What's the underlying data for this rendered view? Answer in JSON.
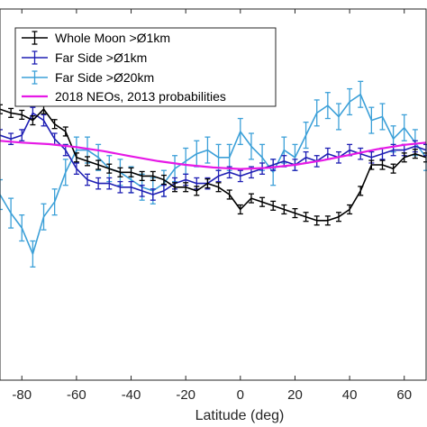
{
  "chart_data": {
    "type": "line",
    "title": "",
    "xlabel": "Latitude (deg)",
    "ylabel": "",
    "xlim": [
      -88,
      68
    ],
    "ylim": [
      0.0,
      1.0
    ],
    "x_ticks": [
      -80,
      -60,
      -40,
      -20,
      0,
      20,
      40,
      60
    ],
    "x_tick_labels": [
      "-80",
      "-60",
      "-40",
      "-20",
      "0",
      "20",
      "40",
      "60"
    ],
    "grid": false,
    "legend_position": "top-left",
    "legend": [
      {
        "label": "Whole Moon >Ø1km",
        "color": "#000000"
      },
      {
        "label": "Far Side >Ø1km",
        "color": "#1f1fb4"
      },
      {
        "label": "Far Side >Ø20km",
        "color": "#3ca0d8"
      },
      {
        "label": "2018 NEOs, 2013 probabilities",
        "color": "#e619e6"
      }
    ],
    "series": [
      {
        "name": "Whole Moon >Ø1km",
        "color": "#000000",
        "error_bars": true,
        "x": [
          -88,
          -84,
          -80,
          -76,
          -72,
          -68,
          -64,
          -60,
          -56,
          -52,
          -48,
          -44,
          -40,
          -36,
          -32,
          -28,
          -24,
          -20,
          -16,
          -12,
          -8,
          -4,
          0,
          4,
          8,
          12,
          16,
          20,
          24,
          28,
          32,
          36,
          40,
          44,
          48,
          52,
          56,
          60,
          64,
          68
        ],
        "y": [
          0.73,
          0.72,
          0.715,
          0.7,
          0.73,
          0.69,
          0.67,
          0.6,
          0.59,
          0.58,
          0.57,
          0.56,
          0.56,
          0.55,
          0.55,
          0.54,
          0.52,
          0.52,
          0.51,
          0.53,
          0.52,
          0.5,
          0.46,
          0.49,
          0.48,
          0.47,
          0.46,
          0.45,
          0.44,
          0.43,
          0.43,
          0.44,
          0.46,
          0.51,
          0.58,
          0.58,
          0.57,
          0.6,
          0.61,
          0.6
        ],
        "err": [
          0.012,
          0.012,
          0.012,
          0.012,
          0.012,
          0.012,
          0.012,
          0.012,
          0.012,
          0.012,
          0.012,
          0.012,
          0.012,
          0.012,
          0.012,
          0.012,
          0.012,
          0.012,
          0.012,
          0.012,
          0.012,
          0.012,
          0.012,
          0.012,
          0.012,
          0.012,
          0.012,
          0.012,
          0.012,
          0.012,
          0.012,
          0.012,
          0.012,
          0.012,
          0.012,
          0.012,
          0.012,
          0.012,
          0.012,
          0.012
        ]
      },
      {
        "name": "Far Side >Ø1km",
        "color": "#1f1fb4",
        "error_bars": true,
        "x": [
          -88,
          -84,
          -80,
          -76,
          -72,
          -68,
          -64,
          -60,
          -56,
          -52,
          -48,
          -44,
          -40,
          -36,
          -32,
          -28,
          -24,
          -20,
          -16,
          -12,
          -8,
          -4,
          0,
          4,
          8,
          12,
          16,
          20,
          24,
          28,
          32,
          36,
          40,
          44,
          48,
          52,
          56,
          60,
          64,
          68
        ],
        "y": [
          0.66,
          0.65,
          0.66,
          0.72,
          0.7,
          0.65,
          0.62,
          0.57,
          0.54,
          0.53,
          0.53,
          0.52,
          0.52,
          0.51,
          0.5,
          0.51,
          0.53,
          0.54,
          0.53,
          0.53,
          0.55,
          0.56,
          0.55,
          0.56,
          0.57,
          0.58,
          0.59,
          0.58,
          0.6,
          0.59,
          0.61,
          0.6,
          0.62,
          0.61,
          0.6,
          0.61,
          0.62,
          0.62,
          0.63,
          0.62
        ],
        "err": [
          0.015,
          0.015,
          0.015,
          0.015,
          0.015,
          0.015,
          0.015,
          0.015,
          0.015,
          0.015,
          0.015,
          0.015,
          0.015,
          0.015,
          0.015,
          0.015,
          0.015,
          0.015,
          0.015,
          0.015,
          0.015,
          0.015,
          0.015,
          0.015,
          0.015,
          0.015,
          0.015,
          0.015,
          0.015,
          0.015,
          0.015,
          0.015,
          0.015,
          0.015,
          0.015,
          0.015,
          0.015,
          0.015,
          0.015,
          0.015
        ]
      },
      {
        "name": "Far Side >Ø20km",
        "color": "#3ca0d8",
        "error_bars": true,
        "x": [
          -88,
          -84,
          -80,
          -76,
          -72,
          -68,
          -64,
          -60,
          -56,
          -52,
          -48,
          -44,
          -40,
          -36,
          -32,
          -28,
          -24,
          -20,
          -16,
          -12,
          -8,
          -4,
          0,
          4,
          8,
          12,
          16,
          20,
          24,
          28,
          32,
          36,
          40,
          44,
          48,
          52,
          56,
          60,
          64,
          68
        ],
        "y": [
          0.5,
          0.45,
          0.41,
          0.34,
          0.44,
          0.48,
          0.56,
          0.62,
          0.62,
          0.6,
          0.57,
          0.56,
          0.54,
          0.52,
          0.51,
          0.53,
          0.57,
          0.59,
          0.61,
          0.62,
          0.6,
          0.6,
          0.67,
          0.63,
          0.6,
          0.56,
          0.62,
          0.6,
          0.66,
          0.72,
          0.74,
          0.71,
          0.75,
          0.77,
          0.7,
          0.71,
          0.65,
          0.68,
          0.64,
          0.6
        ],
        "err": [
          0.04,
          0.04,
          0.035,
          0.035,
          0.035,
          0.035,
          0.035,
          0.035,
          0.035,
          0.035,
          0.035,
          0.035,
          0.035,
          0.035,
          0.035,
          0.035,
          0.035,
          0.035,
          0.035,
          0.035,
          0.035,
          0.035,
          0.035,
          0.035,
          0.035,
          0.035,
          0.035,
          0.035,
          0.035,
          0.035,
          0.035,
          0.035,
          0.035,
          0.035,
          0.035,
          0.035,
          0.035,
          0.035,
          0.035,
          0.035
        ]
      },
      {
        "name": "2018 NEOs, 2013 probabilities",
        "color": "#e619e6",
        "error_bars": false,
        "x": [
          -88,
          -80,
          -70,
          -60,
          -50,
          -40,
          -30,
          -20,
          -10,
          0,
          10,
          20,
          30,
          40,
          50,
          60,
          68
        ],
        "y": [
          0.645,
          0.64,
          0.636,
          0.628,
          0.617,
          0.603,
          0.59,
          0.58,
          0.573,
          0.569,
          0.572,
          0.58,
          0.592,
          0.607,
          0.622,
          0.634,
          0.64
        ]
      }
    ]
  }
}
